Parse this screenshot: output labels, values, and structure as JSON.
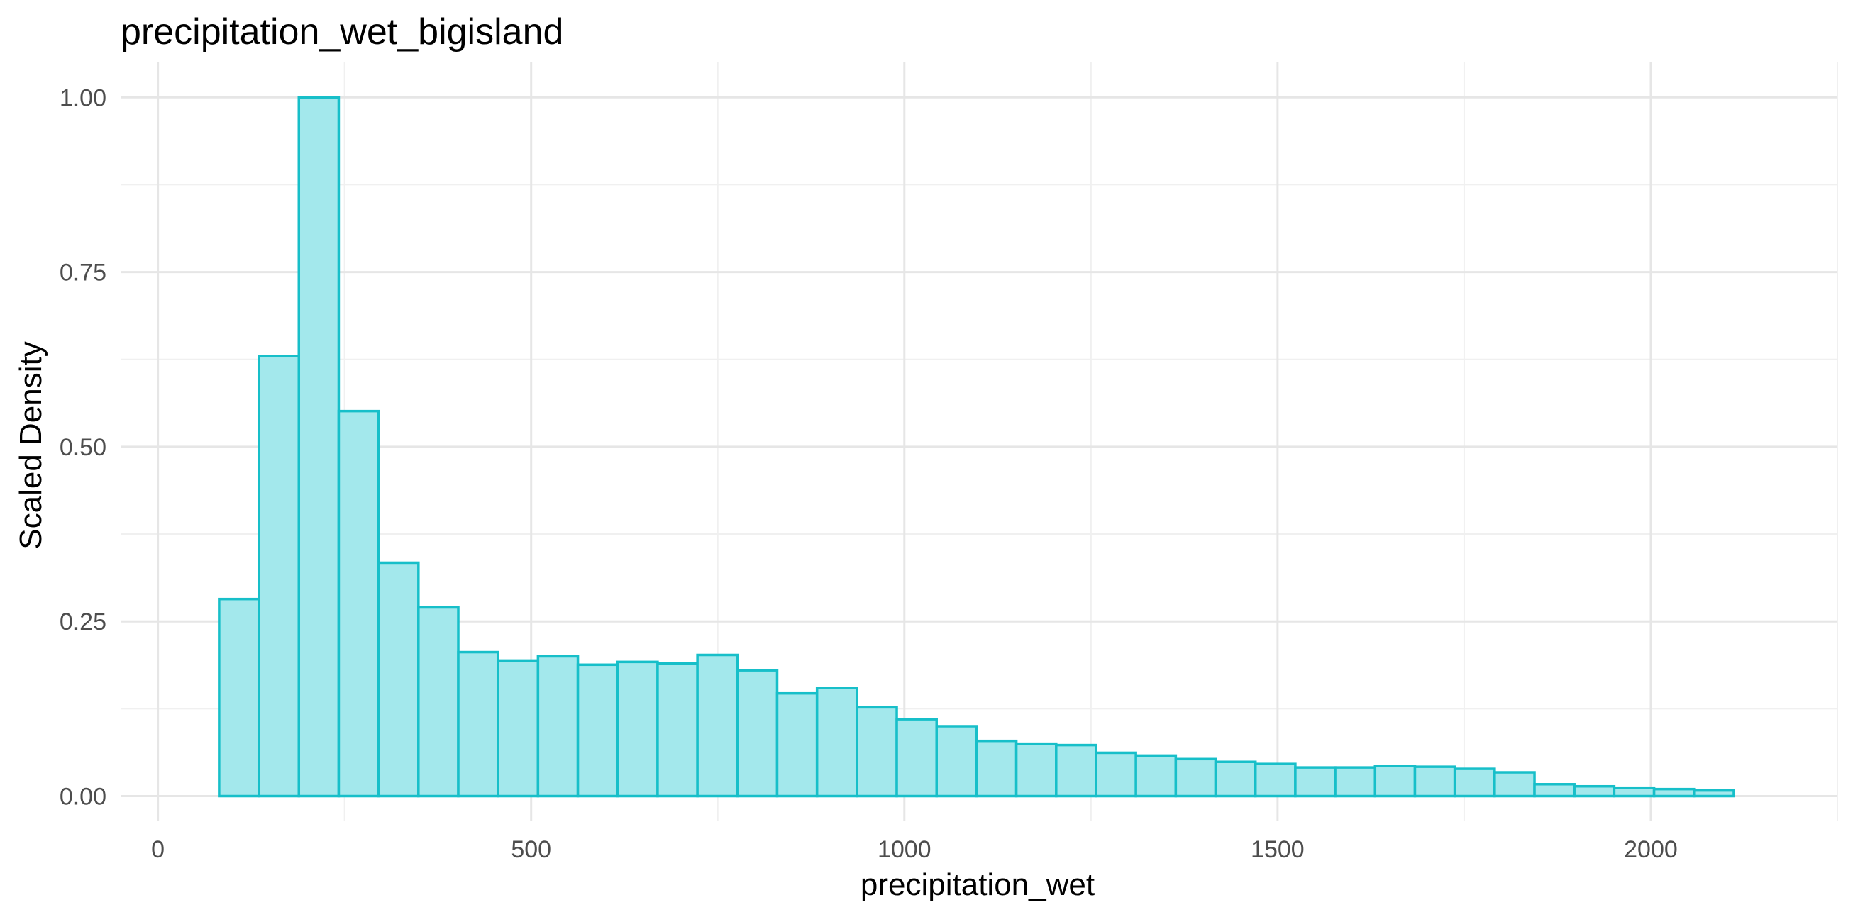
{
  "chart_data": {
    "type": "bar",
    "title": "precipitation_wet_bigisland",
    "xlabel": "precipitation_wet",
    "ylabel": "Scaled Density",
    "xlim": [
      -50,
      2250
    ],
    "ylim": [
      -0.035,
      1.05
    ],
    "x_ticks": [
      0,
      500,
      1000,
      1500,
      2000
    ],
    "x_tick_labels": [
      "0",
      "500",
      "1000",
      "1500",
      "2000"
    ],
    "y_ticks": [
      0,
      0.25,
      0.5,
      0.75,
      1.0
    ],
    "y_tick_labels": [
      "0.00",
      "0.25",
      "0.50",
      "0.75",
      "1.00"
    ],
    "grid": true,
    "legend": "none",
    "bin_start": 82,
    "bin_width": 53.4,
    "values": [
      0.282,
      0.63,
      1.0,
      0.551,
      0.334,
      0.27,
      0.206,
      0.194,
      0.2,
      0.188,
      0.192,
      0.19,
      0.202,
      0.18,
      0.147,
      0.155,
      0.127,
      0.11,
      0.1,
      0.079,
      0.075,
      0.073,
      0.062,
      0.058,
      0.053,
      0.049,
      0.046,
      0.041,
      0.041,
      0.043,
      0.042,
      0.039,
      0.034,
      0.017,
      0.014,
      0.012,
      0.01,
      0.008
    ],
    "fill_color": "#a3e8ec",
    "edge_color": "#17bfc9"
  }
}
